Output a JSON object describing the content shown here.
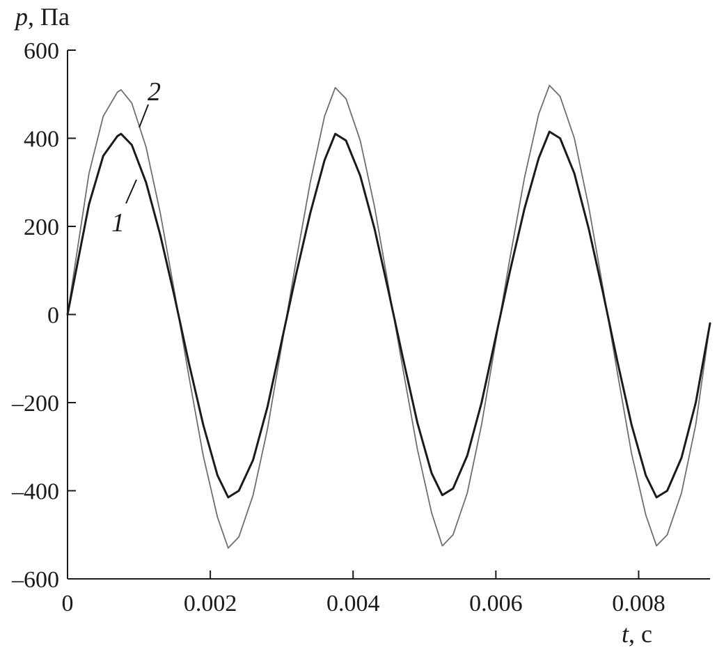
{
  "chart_data": {
    "type": "line",
    "title": "",
    "xlabel": {
      "symbol": "t",
      "unit": ", с"
    },
    "ylabel": {
      "symbol": "p",
      "unit": ", Па"
    },
    "xlim": [
      0,
      0.009
    ],
    "ylim": [
      -600,
      600
    ],
    "xticks": [
      0,
      0.002,
      0.004,
      0.006,
      0.008
    ],
    "xtick_labels": [
      "0",
      "0.002",
      "0.004",
      "0.006",
      "0.008"
    ],
    "yticks": [
      -600,
      -400,
      -200,
      0,
      200,
      400,
      600
    ],
    "ytick_labels": [
      "–600",
      "–400",
      "–200",
      "0",
      "200",
      "400",
      "600"
    ],
    "grid": false,
    "series": [
      {
        "name": "1",
        "color": "#1a1a1a",
        "style": "thick",
        "x": [
          0,
          0.0003,
          0.0005,
          0.0007,
          0.00075,
          0.0009,
          0.0011,
          0.0013,
          0.0015,
          0.0017,
          0.0019,
          0.0021,
          0.00225,
          0.0024,
          0.0026,
          0.0028,
          0.003,
          0.0032,
          0.0034,
          0.0036,
          0.00375,
          0.0039,
          0.0041,
          0.0043,
          0.0045,
          0.0047,
          0.0049,
          0.0051,
          0.00525,
          0.0054,
          0.0056,
          0.0058,
          0.006,
          0.0062,
          0.0064,
          0.0066,
          0.00675,
          0.0069,
          0.0071,
          0.0073,
          0.0075,
          0.0077,
          0.0079,
          0.0081,
          0.00825,
          0.0084,
          0.0086,
          0.0088,
          0.009
        ],
        "y": [
          0,
          250,
          360,
          405,
          410,
          385,
          300,
          180,
          40,
          -110,
          -250,
          -365,
          -415,
          -400,
          -330,
          -210,
          -60,
          90,
          230,
          350,
          410,
          395,
          315,
          195,
          50,
          -100,
          -245,
          -360,
          -410,
          -395,
          -320,
          -200,
          -50,
          100,
          240,
          355,
          415,
          400,
          320,
          195,
          50,
          -105,
          -250,
          -365,
          -415,
          -400,
          -325,
          -200,
          -20
        ]
      },
      {
        "name": "2",
        "color": "#6e6e6e",
        "style": "thin",
        "x": [
          0,
          0.0003,
          0.0005,
          0.0007,
          0.00075,
          0.0009,
          0.0011,
          0.0013,
          0.0015,
          0.0017,
          0.0019,
          0.0021,
          0.00225,
          0.0024,
          0.0026,
          0.0028,
          0.003,
          0.0032,
          0.0034,
          0.0036,
          0.00375,
          0.0039,
          0.0041,
          0.0043,
          0.0045,
          0.0047,
          0.0049,
          0.0051,
          0.00525,
          0.0054,
          0.0056,
          0.0058,
          0.006,
          0.0062,
          0.0064,
          0.0066,
          0.00675,
          0.0069,
          0.0071,
          0.0073,
          0.0075,
          0.0077,
          0.0079,
          0.0081,
          0.00825,
          0.0084,
          0.0086,
          0.0088,
          0.009
        ],
        "y": [
          0,
          320,
          450,
          505,
          510,
          480,
          380,
          230,
          50,
          -140,
          -320,
          -460,
          -530,
          -505,
          -410,
          -260,
          -70,
          120,
          300,
          450,
          515,
          490,
          395,
          245,
          60,
          -125,
          -305,
          -450,
          -525,
          -500,
          -405,
          -250,
          -60,
          130,
          310,
          455,
          520,
          495,
          400,
          245,
          60,
          -130,
          -315,
          -455,
          -525,
          -500,
          -405,
          -250,
          -20
        ]
      }
    ]
  }
}
